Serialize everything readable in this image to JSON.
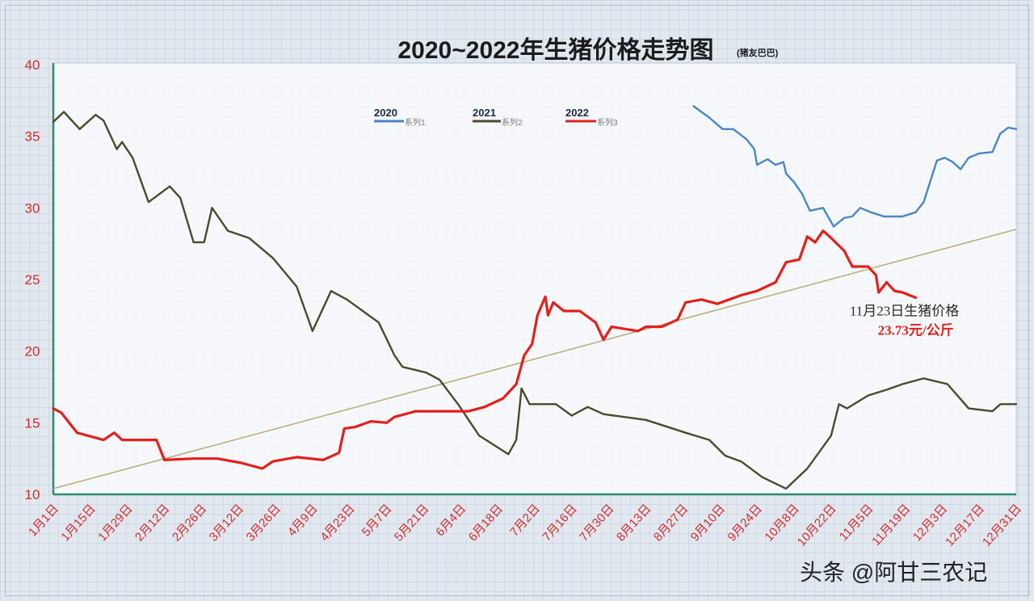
{
  "colors": {
    "page_background": "#e2e8ef",
    "plot_background": "#f6f8fb",
    "axis_line": "#2a8c6c",
    "tick_label": "#d42b2b"
  },
  "watermark": "头条 @阿甘三农记",
  "chart_data": {
    "type": "line",
    "title": "2020~2022年生猪价格走势图",
    "subtitle": "(猪友巴巴)",
    "ylim": [
      10,
      40
    ],
    "y_ticks": [
      40,
      35,
      30,
      25,
      20,
      15,
      10
    ],
    "x_ticks": [
      "1月1日",
      "1月15日",
      "1月29日",
      "2月12日",
      "2月26日",
      "3月12日",
      "3月26日",
      "4月9日",
      "4月23日",
      "5月7日",
      "5月21日",
      "6月4日",
      "6月18日",
      "7月2日",
      "7月16日",
      "7月30日",
      "8月13日",
      "8月27日",
      "9月10日",
      "9月24日",
      "10月8日",
      "10月22日",
      "11月5日",
      "11月19日",
      "12月3日",
      "12月17日",
      "12月31日"
    ],
    "grid": false,
    "legend": {
      "placement": "top-center"
    },
    "series": [
      {
        "name": "2020",
        "legend_label": "系列1",
        "color": "#4a86c6",
        "points": [
          [
            "8月31日",
            37.1
          ],
          [
            "9月6日",
            36.3
          ],
          [
            "9月11日",
            35.5
          ],
          [
            "9月15日",
            35.5
          ],
          [
            "9月20日",
            34.8
          ],
          [
            "9月23日",
            34.1
          ],
          [
            "9月24日",
            33.0
          ],
          [
            "9月28日",
            33.4
          ],
          [
            "10月1日",
            33.0
          ],
          [
            "10月4日",
            33.2
          ],
          [
            "10月5日",
            32.4
          ],
          [
            "10月8日",
            31.8
          ],
          [
            "10月11日",
            31.0
          ],
          [
            "10月14日",
            29.8
          ],
          [
            "10月19日",
            30.0
          ],
          [
            "10月23日",
            28.7
          ],
          [
            "10月27日",
            29.3
          ],
          [
            "10月30日",
            29.4
          ],
          [
            "11月2日",
            30.0
          ],
          [
            "11月6日",
            29.7
          ],
          [
            "11月11日",
            29.4
          ],
          [
            "11月18日",
            29.4
          ],
          [
            "11月23日",
            29.7
          ],
          [
            "11月26日",
            30.4
          ],
          [
            "12月1日",
            33.3
          ],
          [
            "12月4日",
            33.5
          ],
          [
            "12月7日",
            33.2
          ],
          [
            "12月10日",
            32.7
          ],
          [
            "12月13日",
            33.5
          ],
          [
            "12月17日",
            33.8
          ],
          [
            "12月22日",
            33.9
          ],
          [
            "12月25日",
            35.2
          ],
          [
            "12月28日",
            35.6
          ],
          [
            "12月31日",
            35.5
          ]
        ]
      },
      {
        "name": "2021",
        "legend_label": "系列2",
        "color": "#4b4a2c",
        "points": [
          [
            "1月1日",
            36.0
          ],
          [
            "1月5日",
            36.7
          ],
          [
            "1月11日",
            35.5
          ],
          [
            "1月17日",
            36.5
          ],
          [
            "1月20日",
            36.1
          ],
          [
            "1月25日",
            34.1
          ],
          [
            "1月27日",
            34.6
          ],
          [
            "1月31日",
            33.5
          ],
          [
            "2月6日",
            30.4
          ],
          [
            "2月14日",
            31.5
          ],
          [
            "2月18日",
            30.7
          ],
          [
            "2月23日",
            27.6
          ],
          [
            "2月27日",
            27.6
          ],
          [
            "3月2日",
            30.0
          ],
          [
            "3月8日",
            28.4
          ],
          [
            "3月16日",
            27.9
          ],
          [
            "3月25日",
            26.5
          ],
          [
            "4月3日",
            24.5
          ],
          [
            "4月9日",
            21.4
          ],
          [
            "4月16日",
            24.2
          ],
          [
            "4月22日",
            23.6
          ],
          [
            "4月28日",
            22.8
          ],
          [
            "5月4日",
            22.0
          ],
          [
            "5月10日",
            19.7
          ],
          [
            "5月13日",
            18.9
          ],
          [
            "5月22日",
            18.5
          ],
          [
            "5月27日",
            18.0
          ],
          [
            "6月3日",
            16.3
          ],
          [
            "6月11日",
            14.1
          ],
          [
            "6月22日",
            12.8
          ],
          [
            "6月25日",
            13.8
          ],
          [
            "6月27日",
            17.4
          ],
          [
            "6月30日",
            16.3
          ],
          [
            "7月10日",
            16.3
          ],
          [
            "7月16日",
            15.5
          ],
          [
            "7月22日",
            16.1
          ],
          [
            "7月28日",
            15.6
          ],
          [
            "8月13日",
            15.2
          ],
          [
            "8月28日",
            14.3
          ],
          [
            "9月6日",
            13.8
          ],
          [
            "9月12日",
            12.7
          ],
          [
            "9月18日",
            12.3
          ],
          [
            "9月26日",
            11.2
          ],
          [
            "10月5日",
            10.4
          ],
          [
            "10月13日",
            11.8
          ],
          [
            "10月22日",
            14.1
          ],
          [
            "10月25日",
            16.3
          ],
          [
            "10月28日",
            16.0
          ],
          [
            "11月5日",
            16.9
          ],
          [
            "11月12日",
            17.3
          ],
          [
            "11月18日",
            17.7
          ],
          [
            "11月26日",
            18.1
          ],
          [
            "12月5日",
            17.7
          ],
          [
            "12月13日",
            16.0
          ],
          [
            "12月22日",
            15.8
          ],
          [
            "12月25日",
            16.3
          ],
          [
            "12月31日",
            16.3
          ]
        ]
      },
      {
        "name": "2022",
        "legend_label": "系列3",
        "color": "#e3201c",
        "points": [
          [
            "1月1日",
            16.0
          ],
          [
            "1月4日",
            15.7
          ],
          [
            "1月10日",
            14.3
          ],
          [
            "1月14日",
            14.1
          ],
          [
            "1月20日",
            13.8
          ],
          [
            "1月24日",
            14.3
          ],
          [
            "1月27日",
            13.8
          ],
          [
            "2月1日",
            13.8
          ],
          [
            "2月9日",
            13.8
          ],
          [
            "2月12日",
            12.4
          ],
          [
            "2月23日",
            12.5
          ],
          [
            "3月4日",
            12.5
          ],
          [
            "3月13日",
            12.2
          ],
          [
            "3月21日",
            11.8
          ],
          [
            "3月25日",
            12.3
          ],
          [
            "4月3日",
            12.6
          ],
          [
            "4月13日",
            12.4
          ],
          [
            "4月19日",
            12.9
          ],
          [
            "4月21日",
            14.6
          ],
          [
            "4月25日",
            14.7
          ],
          [
            "5月1日",
            15.1
          ],
          [
            "5月7日",
            15.0
          ],
          [
            "5月10日",
            15.4
          ],
          [
            "5月18日",
            15.8
          ],
          [
            "5月28日",
            15.8
          ],
          [
            "6月7日",
            15.8
          ],
          [
            "6月13日",
            16.1
          ],
          [
            "6月20日",
            16.7
          ],
          [
            "6月25日",
            17.7
          ],
          [
            "6月28日",
            19.7
          ],
          [
            "7月1日",
            20.5
          ],
          [
            "7月3日",
            22.5
          ],
          [
            "7月6日",
            23.8
          ],
          [
            "7月7日",
            22.5
          ],
          [
            "7月9日",
            23.4
          ],
          [
            "7月13日",
            22.8
          ],
          [
            "7月19日",
            22.8
          ],
          [
            "7月25日",
            22.0
          ],
          [
            "7月28日",
            20.8
          ],
          [
            "7月31日",
            21.7
          ],
          [
            "8月10日",
            21.4
          ],
          [
            "8月13日",
            21.7
          ],
          [
            "8月19日",
            21.7
          ],
          [
            "8月25日",
            22.2
          ],
          [
            "8月28日",
            23.4
          ],
          [
            "9月3日",
            23.6
          ],
          [
            "9月9日",
            23.3
          ],
          [
            "9月18日",
            23.9
          ],
          [
            "9月24日",
            24.2
          ],
          [
            "10月1日",
            24.8
          ],
          [
            "10月5日",
            26.2
          ],
          [
            "10月10日",
            26.4
          ],
          [
            "10月13日",
            28.0
          ],
          [
            "10月16日",
            27.6
          ],
          [
            "10月19日",
            28.4
          ],
          [
            "10月22日",
            27.9
          ],
          [
            "10月27日",
            27.0
          ],
          [
            "10月30日",
            25.9
          ],
          [
            "11月5日",
            25.9
          ],
          [
            "11月8日",
            25.3
          ],
          [
            "11月9日",
            24.1
          ],
          [
            "11月12日",
            24.8
          ],
          [
            "11月15日",
            24.2
          ],
          [
            "11月18日",
            24.1
          ],
          [
            "11月23日",
            23.73
          ]
        ]
      }
    ],
    "trendline": {
      "color": "#b9b17c",
      "points": [
        [
          "1月1日",
          10.4
        ],
        [
          "12月31日",
          28.5
        ]
      ]
    },
    "annotation": {
      "label": "11月23日生猪价格",
      "value": "23.73元/公斤",
      "at": [
        "11月23日",
        23.73
      ]
    }
  }
}
